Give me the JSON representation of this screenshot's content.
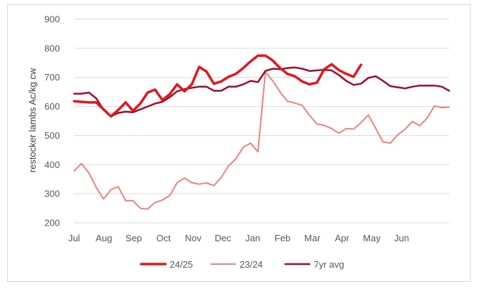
{
  "chart_data": {
    "type": "line",
    "title": "",
    "xlabel": "",
    "ylabel": "restocker lambs Ac/kg cw",
    "ylim": [
      200,
      900
    ],
    "yticks": [
      "900",
      "800",
      "700",
      "600",
      "500",
      "400",
      "300",
      "200"
    ],
    "ytick_values": [
      900,
      800,
      700,
      600,
      500,
      400,
      300,
      200
    ],
    "month_labels": [
      "Jul",
      "Aug",
      "Sep",
      "Oct",
      "Nov",
      "Dec",
      "Jan",
      "Feb",
      "Mar",
      "Apr",
      "May",
      "Jun"
    ],
    "weeks": 52,
    "grid": true,
    "legend_position": "bottom",
    "series": [
      {
        "name": "24/25",
        "color": "#e3161b",
        "width": 3.5,
        "values": [
          618,
          616,
          614,
          614,
          590,
          566,
          588,
          614,
          585,
          610,
          648,
          658,
          622,
          642,
          676,
          652,
          676,
          736,
          720,
          678,
          686,
          702,
          712,
          732,
          755,
          775,
          775,
          758,
          732,
          712,
          704,
          686,
          676,
          682,
          728,
          745,
          725,
          712,
          702,
          743
        ]
      },
      {
        "name": "23/24",
        "color": "#f08080",
        "width": 2,
        "values": [
          378,
          404,
          372,
          322,
          282,
          314,
          324,
          276,
          276,
          250,
          247,
          270,
          278,
          294,
          338,
          354,
          338,
          333,
          337,
          328,
          356,
          396,
          420,
          460,
          474,
          444,
          718,
          688,
          650,
          618,
          612,
          604,
          570,
          540,
          535,
          524,
          508,
          524,
          522,
          544,
          571,
          525,
          478,
          474,
          502,
          522,
          548,
          534,
          560,
          602,
          596,
          598
        ]
      },
      {
        "name": "7yr avg",
        "color": "#9b0d2b",
        "width": 2.5,
        "values": [
          644,
          644,
          648,
          628,
          588,
          566,
          578,
          582,
          580,
          590,
          600,
          610,
          616,
          632,
          652,
          660,
          664,
          668,
          668,
          654,
          654,
          668,
          668,
          676,
          688,
          684,
          722,
          730,
          728,
          732,
          734,
          730,
          722,
          724,
          726,
          724,
          708,
          688,
          674,
          678,
          698,
          704,
          688,
          670,
          666,
          662,
          668,
          672,
          672,
          672,
          668,
          654
        ]
      }
    ]
  }
}
